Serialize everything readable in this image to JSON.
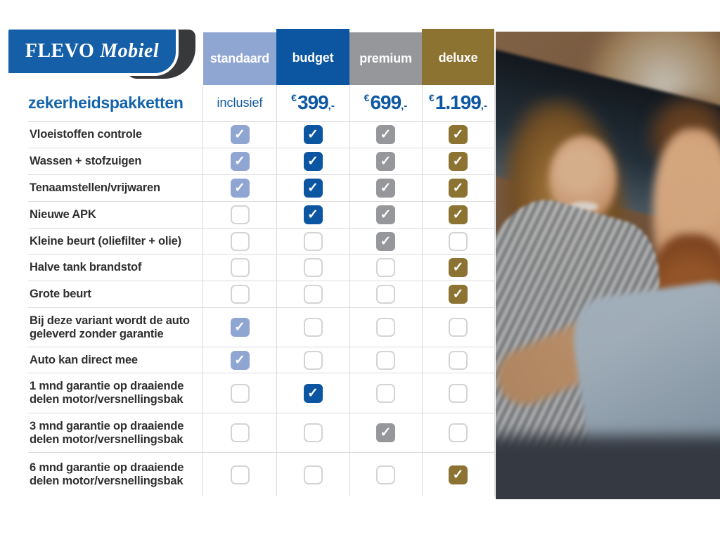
{
  "logo": {
    "brand_primary": "FLEVO",
    "brand_secondary": "Mobiel"
  },
  "page_title": "zekerheidspakketten",
  "icons": {
    "check": "✓"
  },
  "colors": {
    "standaard": "#8fa5d2",
    "budget": "#0b55a1",
    "premium": "#96979a",
    "deluxe": "#8d7332",
    "accent_blue": "#1464ac",
    "price_blue": "#0d57a3",
    "logo_blue": "#145fa7",
    "swoosh_dark": "#38393b"
  },
  "packages": [
    {
      "label": "standaard",
      "color": "#8fa5d2",
      "price_label": "inclusief"
    },
    {
      "label": "budget",
      "color": "#0b55a1",
      "price_currency": "€",
      "price_amount": "399",
      "price_suffix": ",-"
    },
    {
      "label": "premium",
      "color": "#96979a",
      "price_currency": "€",
      "price_amount": "699",
      "price_suffix": ",-"
    },
    {
      "label": "deluxe",
      "color": "#8d7332",
      "price_currency": "€",
      "price_amount": "1.199",
      "price_suffix": ",-"
    }
  ],
  "features": [
    {
      "label": "Vloeistoffen controle",
      "checks": [
        true,
        true,
        true,
        true
      ]
    },
    {
      "label": "Wassen + stofzuigen",
      "checks": [
        true,
        true,
        true,
        true
      ]
    },
    {
      "label": "Tenaamstellen/vrijwaren",
      "checks": [
        true,
        true,
        true,
        true
      ]
    },
    {
      "label": "Nieuwe APK",
      "checks": [
        false,
        true,
        true,
        true
      ]
    },
    {
      "label": "Kleine beurt (oliefilter + olie)",
      "checks": [
        false,
        false,
        true,
        false
      ]
    },
    {
      "label": "Halve tank brandstof",
      "checks": [
        false,
        false,
        false,
        true
      ]
    },
    {
      "label": "Grote beurt",
      "checks": [
        false,
        false,
        false,
        true
      ]
    },
    {
      "label": "Bij deze variant wordt de auto geleverd zonder garantie",
      "checks": [
        true,
        false,
        false,
        false
      ]
    },
    {
      "label": "Auto kan direct mee",
      "checks": [
        true,
        false,
        false,
        false
      ]
    },
    {
      "label": "1 mnd garantie op draaiende delen motor/versnellingsbak",
      "checks": [
        false,
        true,
        false,
        false
      ]
    },
    {
      "label": "3 mnd garantie op draaiende delen motor/versnellingsbak",
      "checks": [
        false,
        false,
        true,
        false
      ]
    },
    {
      "label": "6 mnd garantie op draaiende delen motor/versnellingsbak",
      "checks": [
        false,
        false,
        false,
        true
      ]
    }
  ],
  "chart_data": {
    "type": "table",
    "title": "zekerheidspakketten",
    "columns": [
      "standaard",
      "budget",
      "premium",
      "deluxe"
    ],
    "prices": [
      "inclusief",
      "€399,-",
      "€699,-",
      "€1.199,-"
    ],
    "rows": [
      {
        "label": "Vloeistoffen controle",
        "values": [
          true,
          true,
          true,
          true
        ]
      },
      {
        "label": "Wassen + stofzuigen",
        "values": [
          true,
          true,
          true,
          true
        ]
      },
      {
        "label": "Tenaamstellen/vrijwaren",
        "values": [
          true,
          true,
          true,
          true
        ]
      },
      {
        "label": "Nieuwe APK",
        "values": [
          false,
          true,
          true,
          true
        ]
      },
      {
        "label": "Kleine beurt (oliefilter + olie)",
        "values": [
          false,
          false,
          true,
          false
        ]
      },
      {
        "label": "Halve tank brandstof",
        "values": [
          false,
          false,
          false,
          true
        ]
      },
      {
        "label": "Grote beurt",
        "values": [
          false,
          false,
          false,
          true
        ]
      },
      {
        "label": "Bij deze variant wordt de auto geleverd zonder garantie",
        "values": [
          true,
          false,
          false,
          false
        ]
      },
      {
        "label": "Auto kan direct mee",
        "values": [
          true,
          false,
          false,
          false
        ]
      },
      {
        "label": "1 mnd garantie op draaiende delen motor/versnellingsbak",
        "values": [
          false,
          true,
          false,
          false
        ]
      },
      {
        "label": "3 mnd garantie op draaiende delen motor/versnellingsbak",
        "values": [
          false,
          false,
          true,
          false
        ]
      },
      {
        "label": "6 mnd garantie op draaiende delen motor/versnellingsbak",
        "values": [
          false,
          false,
          false,
          true
        ]
      }
    ]
  }
}
